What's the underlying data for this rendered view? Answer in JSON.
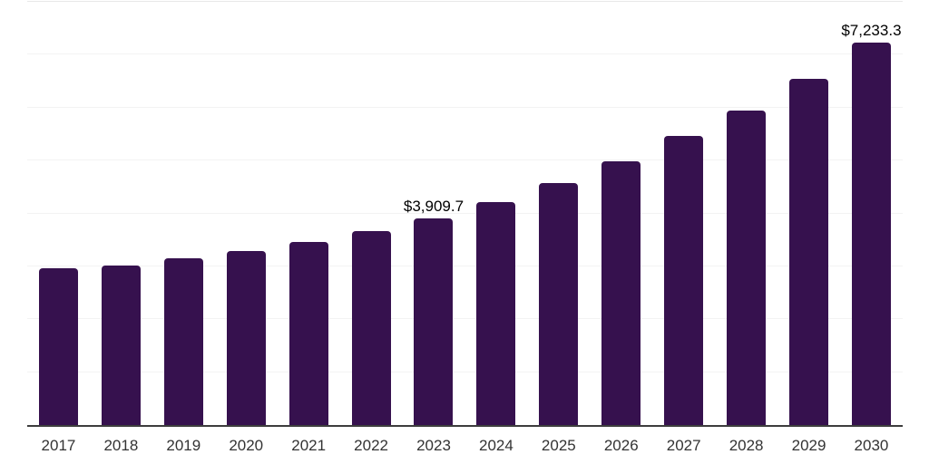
{
  "chart_data": {
    "type": "bar",
    "title": "",
    "categories": [
      "2017",
      "2018",
      "2019",
      "2020",
      "2021",
      "2022",
      "2023",
      "2024",
      "2025",
      "2026",
      "2027",
      "2028",
      "2029",
      "2030"
    ],
    "values": [
      2960,
      3020,
      3160,
      3285,
      3465,
      3660,
      3909.7,
      4220,
      4570,
      4980,
      5460,
      5945,
      6540,
      7233.3
    ],
    "data_labels": [
      null,
      null,
      null,
      null,
      null,
      null,
      "$3,909.7",
      null,
      null,
      null,
      null,
      null,
      null,
      "$7,233.3"
    ],
    "xlabel": "",
    "ylabel": "",
    "ylim": [
      0,
      8000
    ],
    "gridline_step": 1000,
    "grid": "horizontal",
    "legend": "none",
    "colors": {
      "bar": "#36114E",
      "axis_line": "#3d3d3d",
      "gridline": "#f3f3f3",
      "top_border": "#e8e8e8",
      "x_tick_label": "#333333",
      "data_label": "#000000",
      "background": "#ffffff"
    }
  }
}
